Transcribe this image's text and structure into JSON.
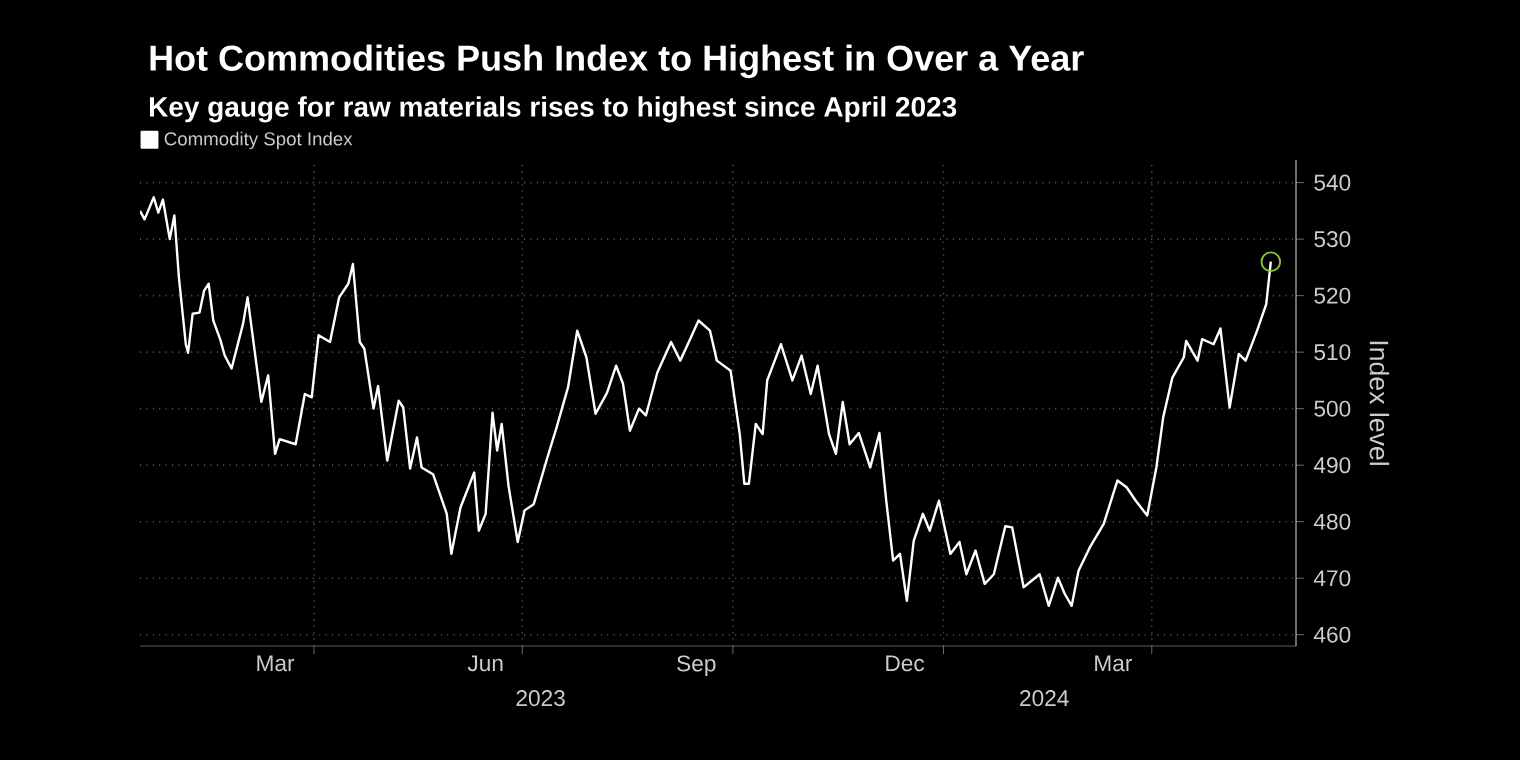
{
  "chart_data": {
    "type": "line",
    "title": "Hot Commodities Push Index to Highest in Over a Year",
    "subtitle": "Key gauge for raw materials rises to highest since April 2023",
    "ylabel": "Index level",
    "xlim": [
      "2023-01-15",
      "2024-06-03"
    ],
    "xticks": [
      {
        "value": "2023-03-15",
        "label": "Mar"
      },
      {
        "value": "2023-04-01",
        "label": null
      },
      {
        "value": "2023-06-15",
        "label": "Jun"
      },
      {
        "value": "2023-07-01",
        "label": null
      },
      {
        "value": "2023-09-15",
        "label": "Sep"
      },
      {
        "value": "2023-10-01",
        "label": null
      },
      {
        "value": "2023-12-15",
        "label": "Dec"
      },
      {
        "value": "2024-01-01",
        "label": null
      },
      {
        "value": "2024-03-15",
        "label": "Mar"
      },
      {
        "value": "2024-04-01",
        "label": null
      }
    ],
    "x2lim": [
      "2023-01-15",
      "2024-06-03"
    ],
    "x2ticks": [
      {
        "value": "2023-07-09",
        "label": "2023"
      },
      {
        "value": "2024-02-14",
        "label": "2024"
      }
    ],
    "ylim": [
      458,
      544
    ],
    "yticks": [
      460,
      470,
      480,
      490,
      500,
      510,
      520,
      530,
      540
    ],
    "grid": true,
    "legend": "top left",
    "series": [
      {
        "name": "Commodity Spot Index",
        "color": "#ffffff",
        "x": [
          "2023-01-15",
          "2023-01-17",
          "2023-01-21",
          "2023-01-23",
          "2023-01-25",
          "2023-01-28",
          "2023-01-30",
          "2023-02-01",
          "2023-02-04",
          "2023-02-05",
          "2023-02-07",
          "2023-02-10",
          "2023-02-12",
          "2023-02-14",
          "2023-02-16",
          "2023-02-19",
          "2023-02-21",
          "2023-02-24",
          "2023-03-01",
          "2023-03-03",
          "2023-03-09",
          "2023-03-12",
          "2023-03-15",
          "2023-03-17",
          "2023-03-24",
          "2023-03-28",
          "2023-03-31",
          "2023-04-03",
          "2023-04-08",
          "2023-04-12",
          "2023-04-16",
          "2023-04-18",
          "2023-04-21",
          "2023-04-23",
          "2023-04-27",
          "2023-04-29",
          "2023-05-03",
          "2023-05-08",
          "2023-05-10",
          "2023-05-13",
          "2023-05-16",
          "2023-05-18",
          "2023-05-23",
          "2023-05-29",
          "2023-05-31",
          "2023-06-04",
          "2023-06-10",
          "2023-06-12",
          "2023-06-15",
          "2023-06-18",
          "2023-06-20",
          "2023-06-22",
          "2023-06-25",
          "2023-06-29",
          "2023-07-02",
          "2023-07-06",
          "2023-07-12",
          "2023-07-16",
          "2023-07-21",
          "2023-07-25",
          "2023-07-29",
          "2023-08-02",
          "2023-08-07",
          "2023-08-11",
          "2023-08-14",
          "2023-08-17",
          "2023-08-21",
          "2023-08-24",
          "2023-08-29",
          "2023-09-04",
          "2023-09-08",
          "2023-09-12",
          "2023-09-16",
          "2023-09-21",
          "2023-09-24",
          "2023-09-30",
          "2023-10-04",
          "2023-10-06",
          "2023-10-08",
          "2023-10-11",
          "2023-10-14",
          "2023-10-16",
          "2023-10-22",
          "2023-10-27",
          "2023-10-31",
          "2023-11-04",
          "2023-11-07",
          "2023-11-12",
          "2023-11-15",
          "2023-11-18",
          "2023-11-21",
          "2023-11-25",
          "2023-11-30",
          "2023-12-04",
          "2023-12-07",
          "2023-12-10",
          "2023-12-13",
          "2023-12-16",
          "2023-12-19",
          "2023-12-23",
          "2023-12-26",
          "2023-12-30",
          "2024-01-04",
          "2024-01-08",
          "2024-01-11",
          "2024-01-15",
          "2024-01-19",
          "2024-01-23",
          "2024-01-28",
          "2024-01-31",
          "2024-02-05",
          "2024-02-12",
          "2024-02-16",
          "2024-02-20",
          "2024-02-23",
          "2024-02-26",
          "2024-02-29",
          "2024-03-05",
          "2024-03-11",
          "2024-03-17",
          "2024-03-21",
          "2024-03-25",
          "2024-03-30",
          "2024-04-03",
          "2024-04-06",
          "2024-04-10",
          "2024-04-15",
          "2024-04-16",
          "2024-04-21",
          "2024-04-23",
          "2024-04-28",
          "2024-05-01",
          "2024-05-05",
          "2024-05-09",
          "2024-05-12",
          "2024-05-17",
          "2024-05-21",
          "2024-05-23"
        ],
        "values": [
          535.0,
          533.5,
          537.4,
          534.7,
          537.0,
          530.0,
          534.2,
          523.2,
          511.4,
          509.9,
          516.8,
          517.0,
          520.9,
          522.1,
          515.6,
          512.3,
          509.4,
          507.1,
          515.0,
          519.7,
          501.2,
          505.9,
          492.0,
          494.6,
          493.7,
          502.6,
          502.0,
          513.0,
          511.8,
          519.7,
          522.1,
          525.6,
          511.8,
          510.6,
          500.0,
          504.0,
          490.8,
          501.4,
          500.2,
          489.4,
          494.9,
          489.6,
          488.4,
          481.4,
          474.3,
          482.5,
          488.7,
          478.4,
          481.4,
          499.3,
          492.6,
          497.3,
          486.3,
          476.4,
          482.0,
          483.1,
          491.4,
          496.7,
          503.8,
          513.8,
          509.1,
          499.1,
          502.8,
          507.6,
          504.4,
          496.1,
          500.0,
          498.8,
          506.4,
          511.8,
          508.5,
          512.0,
          515.6,
          513.8,
          508.5,
          506.7,
          495.5,
          486.7,
          486.7,
          497.3,
          495.5,
          505.0,
          511.4,
          505.0,
          509.4,
          502.6,
          507.6,
          495.5,
          492.0,
          501.2,
          493.7,
          495.7,
          489.6,
          495.7,
          483.7,
          473.1,
          474.3,
          466.0,
          476.6,
          481.4,
          478.4,
          483.7,
          474.3,
          476.4,
          470.7,
          474.9,
          469.0,
          470.7,
          479.2,
          479.0,
          468.4,
          470.7,
          465.1,
          470.1,
          467.2,
          465.1,
          471.3,
          475.5,
          479.6,
          487.3,
          486.1,
          483.7,
          481.1,
          489.6,
          498.5,
          505.5,
          509.1,
          512.0,
          508.5,
          512.3,
          511.4,
          514.2,
          500.2,
          509.7,
          508.5,
          513.8,
          518.5,
          526.0
        ]
      },
      {
        "color": "#8dc63f",
        "type": "scatter",
        "marker": "circle",
        "x": [
          "2024-05-23"
        ],
        "values": [
          526.0
        ]
      }
    ]
  }
}
